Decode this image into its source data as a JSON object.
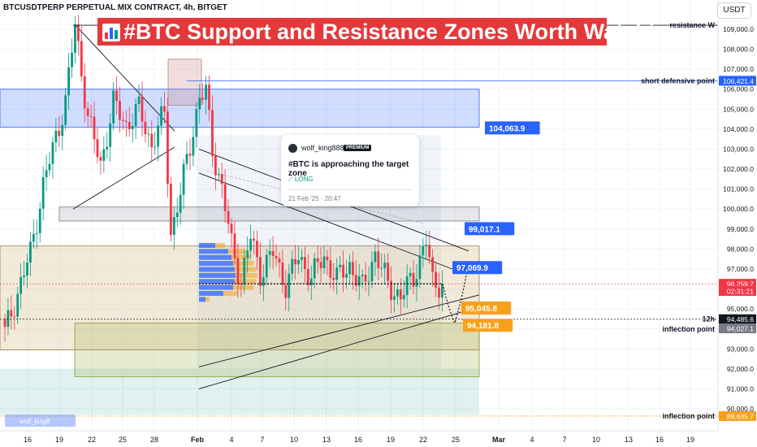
{
  "symbol_line": "BTCUSDTPERP PERPETUAL MIX CONTRACT, 4h, BITGET",
  "title": "#BTC Support and Resistance Zones Worth Watching",
  "currency": "USDT",
  "watermark": "wolf_king8",
  "idea_card": {
    "author": "wolf_king888",
    "badge": "PREMIUM",
    "headline": "#BTC is approaching the target zone",
    "direction": "LONG",
    "timestamp": "21 Feb '25 · 20:47"
  },
  "colors": {
    "up": "#089981",
    "down": "#f23645",
    "blue_label": "#2962ff",
    "orange_label": "#f7a11a",
    "title_bg": "#e5383b",
    "price_red": "#f23645"
  },
  "chart_data": {
    "type": "candlestick",
    "timeframe": "4h",
    "ylim": [
      89700,
      110300
    ],
    "x_ticks": [
      "16",
      "19",
      "22",
      "25",
      "28",
      "Feb",
      "4",
      "7",
      "10",
      "13",
      "16",
      "19",
      "22",
      "25",
      "Mar",
      "4",
      "7",
      "10",
      "13",
      "16",
      "19"
    ],
    "y_ticks": [
      90000,
      91000,
      92000,
      93000,
      94000,
      95000,
      96000,
      97000,
      98000,
      99000,
      100000,
      101000,
      102000,
      103000,
      104000,
      105000,
      106000,
      107000,
      108000,
      109000
    ],
    "y_tick_labels": [
      "90,000.0",
      "91,000.0",
      "92,000.0",
      "93,000.0",
      "94,000.0",
      "95,000.0",
      "96,000.0",
      "97,000.0",
      "98,000.0",
      "99,000.0",
      "100,000.0",
      "101,000.0",
      "102,000.0",
      "103,000.0",
      "104,000.0",
      "105,000.0",
      "106,000.0",
      "107,000.0",
      "108,000.0",
      "109,000.0"
    ],
    "candles_anchor": [
      [
        0,
        93800,
        "down"
      ],
      [
        4,
        95800,
        "up"
      ],
      [
        8,
        97800,
        "up"
      ],
      [
        12,
        101200,
        "up"
      ],
      [
        16,
        103600,
        "up"
      ],
      [
        19,
        105400,
        "up"
      ],
      [
        22,
        109200,
        "up"
      ],
      [
        26,
        104600,
        "down"
      ],
      [
        30,
        102200,
        "down"
      ],
      [
        34,
        105300,
        "up"
      ],
      [
        38,
        104200,
        "down"
      ],
      [
        42,
        105000,
        "up"
      ],
      [
        46,
        103200,
        "down"
      ],
      [
        50,
        104800,
        "up"
      ],
      [
        52,
        98800,
        "down"
      ],
      [
        55,
        100800,
        "up"
      ],
      [
        58,
        103200,
        "up"
      ],
      [
        61,
        105600,
        "up"
      ],
      [
        63,
        105800,
        "up"
      ],
      [
        65,
        103000,
        "down"
      ],
      [
        68,
        101000,
        "down"
      ],
      [
        71,
        98200,
        "down"
      ],
      [
        74,
        96400,
        "down"
      ],
      [
        77,
        98600,
        "up"
      ],
      [
        80,
        96800,
        "down"
      ],
      [
        84,
        97800,
        "up"
      ],
      [
        88,
        96200,
        "down"
      ],
      [
        92,
        97600,
        "up"
      ],
      [
        96,
        96600,
        "down"
      ],
      [
        100,
        97600,
        "up"
      ],
      [
        104,
        96500,
        "down"
      ],
      [
        108,
        97200,
        "up"
      ],
      [
        112,
        96000,
        "down"
      ],
      [
        116,
        97800,
        "up"
      ],
      [
        120,
        96200,
        "down"
      ],
      [
        124,
        95600,
        "down"
      ],
      [
        128,
        96600,
        "up"
      ],
      [
        132,
        98400,
        "up"
      ],
      [
        134,
        96300,
        "down"
      ],
      [
        137,
        96300,
        "up"
      ]
    ],
    "horizontal_levels": [
      {
        "label": "resistance W",
        "value": 109200
      },
      {
        "label": "short defensive point",
        "value": 106421.4
      },
      {
        "label": "12h",
        "value": 94485.6
      },
      {
        "label": "inflection point",
        "value": 94027.1
      },
      {
        "label": "inflection point",
        "value": 89635.7
      }
    ],
    "price_labels": [
      {
        "text": "104,063.9",
        "value": 104063.9,
        "color": "blue"
      },
      {
        "text": "99,017.1",
        "value": 99017.1,
        "color": "blue"
      },
      {
        "text": "97,069.9",
        "value": 97069.9,
        "color": "blue"
      },
      {
        "text": "95,045.8",
        "value": 95045.8,
        "color": "orange"
      },
      {
        "text": "94,181.8",
        "value": 94181.8,
        "color": "orange"
      }
    ],
    "axis_labels": [
      {
        "text": "106,421.4",
        "value": 106421.4,
        "bg": "#2962ff"
      },
      {
        "text": "96,259.7",
        "value": 96259.7,
        "bg": "#f23645"
      },
      {
        "text": "02:31:21",
        "value": 95900,
        "bg": "#f23645"
      },
      {
        "text": "94,485.6",
        "value": 94485.6,
        "bg": "#131722"
      },
      {
        "text": "94,027.1",
        "value": 94027.1,
        "bg": "#787b86"
      },
      {
        "text": "89,635.7",
        "value": 89635.7,
        "bg": "#f7a11a"
      }
    ],
    "zones": [
      {
        "name": "upper resistance",
        "from": 104100,
        "to": 106000
      },
      {
        "name": "mid resistance",
        "from": 99400,
        "to": 100100
      },
      {
        "name": "support",
        "from": 92950,
        "to": 98150
      },
      {
        "name": "lower support",
        "from": 91600,
        "to": 94300
      }
    ],
    "current_price": 96259.7
  }
}
